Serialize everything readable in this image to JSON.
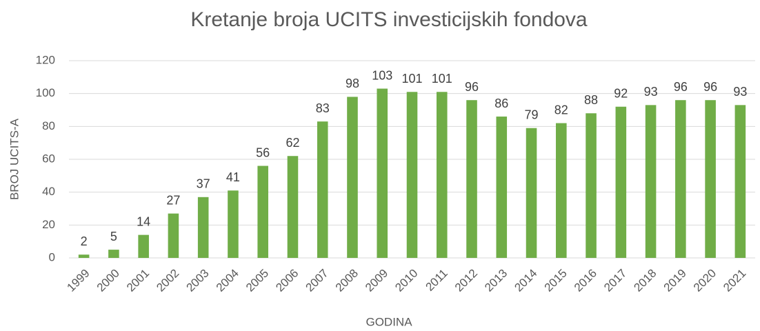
{
  "chart_data": {
    "type": "bar",
    "title": "Kretanje broja UCITS investicijskih fondova",
    "x_label": "GODINA",
    "y_label": "BROJ UCITS-A",
    "categories": [
      "1999",
      "2000",
      "2001",
      "2002",
      "2003",
      "2004",
      "2005",
      "2006",
      "2007",
      "2008",
      "2009",
      "2010",
      "2011",
      "2012",
      "2013",
      "2014",
      "2015",
      "2016",
      "2017",
      "2018",
      "2019",
      "2020",
      "2021"
    ],
    "values": [
      2,
      5,
      14,
      27,
      37,
      41,
      56,
      62,
      83,
      98,
      103,
      101,
      101,
      96,
      86,
      79,
      82,
      88,
      92,
      93,
      96,
      96,
      93
    ],
    "color": "#70ad47",
    "ylim": [
      0,
      120
    ],
    "yticks": [
      0,
      20,
      40,
      60,
      80,
      100,
      120
    ],
    "grid": true
  }
}
